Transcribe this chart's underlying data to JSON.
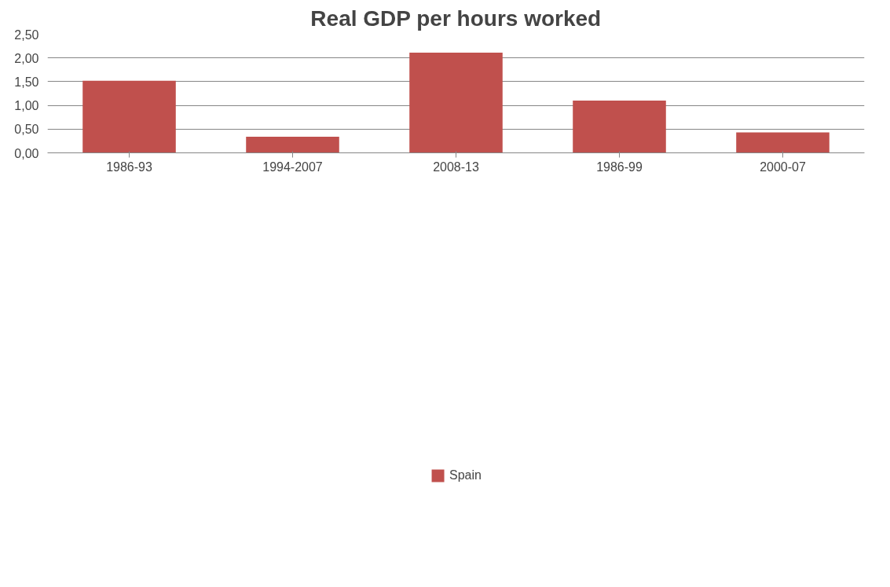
{
  "chart_data": {
    "type": "bar",
    "title": "Real GDP per hours worked",
    "categories": [
      "1986-93",
      "1994-2007",
      "2008-13",
      "1986-99",
      "2000-07"
    ],
    "series": [
      {
        "name": "Spain",
        "color": "#c0504d",
        "values": [
          1.52,
          0.34,
          2.11,
          1.1,
          0.43
        ]
      }
    ],
    "ylim": [
      0,
      2.5
    ],
    "yticks": [
      {
        "value": 0,
        "label": "0,00"
      },
      {
        "value": 0.5,
        "label": "0,50"
      },
      {
        "value": 1,
        "label": "1,00"
      },
      {
        "value": 1.5,
        "label": "1,50"
      },
      {
        "value": 2,
        "label": "2,00"
      },
      {
        "value": 2.5,
        "label": "2,50"
      }
    ],
    "grid": "y",
    "legend": "bottom"
  }
}
